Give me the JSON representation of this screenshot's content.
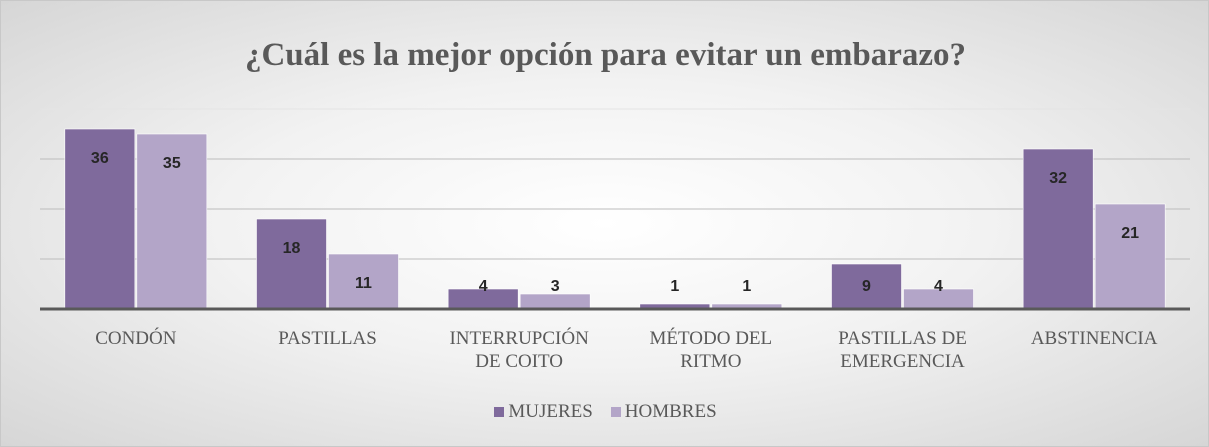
{
  "chart_data": {
    "type": "bar",
    "title": "¿Cuál es la mejor opción para evitar un embarazo?",
    "categories": [
      "CONDÓN",
      "PASTILLAS",
      "INTERRUPCIÓN DE COITO",
      "MÉTODO DEL RITMO",
      "PASTILLAS DE EMERGENCIA",
      "ABSTINENCIA"
    ],
    "series": [
      {
        "name": "MUJERES",
        "color": "#7f6a9c",
        "values": [
          36,
          18,
          4,
          1,
          9,
          32
        ]
      },
      {
        "name": "HOMBRES",
        "color": "#b3a5c8",
        "values": [
          35,
          11,
          3,
          1,
          4,
          21
        ]
      }
    ],
    "ylim": [
      0,
      40
    ],
    "yticks": [
      0,
      10,
      20,
      30,
      40
    ],
    "grid": true,
    "legend": "bottom"
  }
}
